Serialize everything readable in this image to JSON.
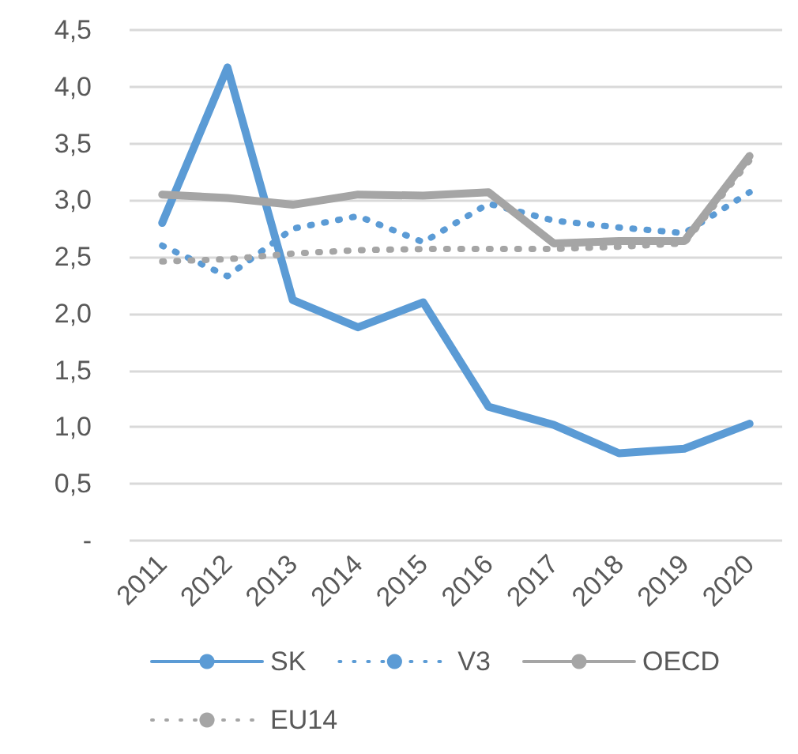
{
  "chart_data": {
    "type": "line",
    "categories": [
      "2011",
      "2012",
      "2013",
      "2014",
      "2015",
      "2016",
      "2017",
      "2018",
      "2019",
      "2020"
    ],
    "series": [
      {
        "name": "SK",
        "color": "#5b9bd5",
        "line_style": "solid",
        "values": [
          2.8,
          4.17,
          2.12,
          1.88,
          2.1,
          1.18,
          1.02,
          0.77,
          0.81,
          1.03
        ]
      },
      {
        "name": "V3",
        "color": "#5b9bd5",
        "line_style": "dotted",
        "values": [
          2.6,
          2.33,
          2.75,
          2.86,
          2.63,
          2.97,
          2.82,
          2.76,
          2.71,
          3.07
        ]
      },
      {
        "name": "OECD",
        "color": "#a5a5a5",
        "line_style": "solid",
        "values": [
          3.05,
          3.02,
          2.96,
          3.05,
          3.04,
          3.07,
          2.62,
          2.64,
          2.64,
          3.39
        ]
      },
      {
        "name": "EU14",
        "color": "#a5a5a5",
        "line_style": "dotted",
        "values": [
          2.46,
          2.48,
          2.53,
          2.56,
          2.57,
          2.57,
          2.57,
          2.59,
          2.62,
          3.35
        ]
      }
    ],
    "ylim": [
      0,
      4.5
    ],
    "yticks": [
      {
        "value": 0,
        "label": "-"
      },
      {
        "value": 0.5,
        "label": "0,5"
      },
      {
        "value": 1,
        "label": "1,0"
      },
      {
        "value": 1.5,
        "label": "1,5"
      },
      {
        "value": 2,
        "label": "2,0"
      },
      {
        "value": 2.5,
        "label": "2,5"
      },
      {
        "value": 3,
        "label": "3,0"
      },
      {
        "value": 3.5,
        "label": "3,5"
      },
      {
        "value": 4,
        "label": "4,0"
      },
      {
        "value": 4.5,
        "label": "4,5"
      }
    ],
    "grid": "y",
    "legend": "bottom",
    "marker": "none"
  }
}
